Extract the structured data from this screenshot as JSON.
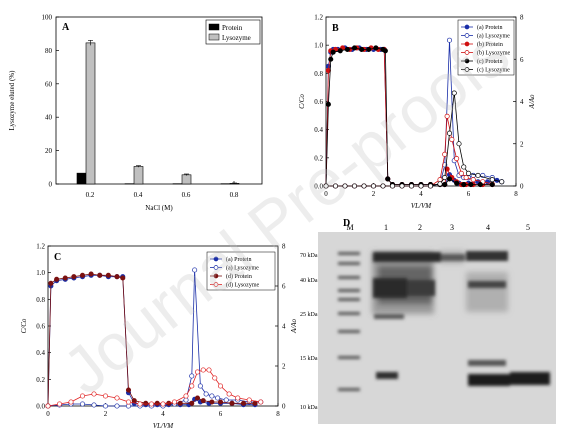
{
  "watermark": "Journal Pre-proofs",
  "chart_data": [
    {
      "panel": "A",
      "type": "bar",
      "ylabel": "Lysozyme eluted (%)",
      "xlabel": "NaCl (M)",
      "ylim": [
        0,
        100
      ],
      "yticks": [
        "0",
        "20",
        "40",
        "60",
        "80",
        "100"
      ],
      "categories": [
        "0.2",
        "0.4",
        "0.6",
        "0.8"
      ],
      "series": [
        {
          "name": "Protein",
          "values": [
            6.5,
            0.2,
            0.2,
            0.2
          ],
          "errors": [
            0,
            0,
            0,
            0
          ]
        },
        {
          "name": "Lysozyme",
          "values": [
            84.5,
            10.5,
            5.5,
            0.4
          ],
          "errors": [
            1.5,
            0.5,
            0.5,
            0.2
          ]
        }
      ],
      "colors": {
        "Protein": "#000000",
        "Lysozyme": "#c0c0c0"
      },
      "legend": "top-right"
    },
    {
      "panel": "B",
      "type": "line",
      "xlabel": "VL/VM",
      "ylabel": "C/Co",
      "ylabel_right": "A/Ao",
      "xlim": [
        0,
        8
      ],
      "ylim": [
        0,
        1.2
      ],
      "ylim_right": [
        0,
        8
      ],
      "xticks": [
        "0",
        "2",
        "4",
        "6",
        "8"
      ],
      "yticks": [
        "0.0",
        "0.2",
        "0.4",
        "0.6",
        "0.8",
        "1.0",
        "1.2"
      ],
      "yticks_right": [
        "0",
        "2",
        "4",
        "6",
        "8"
      ],
      "series": [
        {
          "name": "(a) Protein",
          "axis": "left",
          "color": "#1a2ea8",
          "fill": "#1a2ea8",
          "x": [
            0,
            0.1,
            0.2,
            0.3,
            0.5,
            0.8,
            1.1,
            1.4,
            1.7,
            2.0,
            2.3,
            2.45,
            2.6,
            2.8,
            3.2,
            3.6,
            4.0,
            4.4,
            4.8,
            5.0,
            5.2,
            5.4,
            5.6,
            5.8,
            6.0,
            6.4,
            6.8,
            7.2
          ],
          "y": [
            0.0,
            0.85,
            0.95,
            0.97,
            0.97,
            0.98,
            0.97,
            0.98,
            0.97,
            0.97,
            0.97,
            0.97,
            0.05,
            0.01,
            0.01,
            0.01,
            0.01,
            0.01,
            0.01,
            0.01,
            0.08,
            0.04,
            0.02,
            0.01,
            0.02,
            0.03,
            0.03,
            0.04
          ]
        },
        {
          "name": "(a) Lysozyme",
          "axis": "right",
          "color": "#1a2ea8",
          "fill": "#ffffff",
          "x": [
            0,
            0.4,
            0.8,
            1.2,
            1.6,
            2.0,
            2.4,
            2.8,
            3.2,
            3.6,
            4.0,
            4.4,
            4.8,
            5.0,
            5.2,
            5.4,
            5.6,
            5.8,
            6.0,
            6.2,
            6.6,
            7.0,
            7.4
          ],
          "y": [
            0,
            0,
            0,
            0,
            0,
            0,
            0,
            0,
            0,
            0,
            0,
            0,
            0.1,
            1.0,
            6.9,
            1.2,
            0.5,
            0.4,
            0.4,
            0.5,
            0.5,
            0.4,
            0.2
          ]
        },
        {
          "name": "(b) Protein",
          "axis": "left",
          "color": "#d01010",
          "fill": "#d01010",
          "x": [
            0,
            0.1,
            0.2,
            0.4,
            0.7,
            1.0,
            1.3,
            1.6,
            1.9,
            2.2,
            2.45,
            2.6,
            2.8,
            3.2,
            3.6,
            4.0,
            4.4,
            4.8,
            5.0,
            5.1,
            5.3,
            5.5,
            5.7,
            5.9,
            6.2,
            6.6,
            7.0
          ],
          "y": [
            0.0,
            0.82,
            0.96,
            0.97,
            0.98,
            0.97,
            0.98,
            0.97,
            0.98,
            0.97,
            0.97,
            0.05,
            0.01,
            0.01,
            0.01,
            0.01,
            0.01,
            0.01,
            0.01,
            0.12,
            0.06,
            0.03,
            0.01,
            0.01,
            0.01,
            0.01,
            0.01
          ]
        },
        {
          "name": "(b) Lysozyme",
          "axis": "right",
          "color": "#d01010",
          "fill": "#ffffff",
          "x": [
            0,
            0.4,
            0.8,
            1.2,
            1.6,
            2.0,
            2.4,
            2.8,
            3.2,
            3.6,
            4.0,
            4.4,
            4.8,
            5.0,
            5.1,
            5.3,
            5.5,
            5.7,
            5.9,
            6.2,
            6.6,
            7.0
          ],
          "y": [
            0,
            0,
            0,
            0,
            0,
            0,
            0,
            0,
            0,
            0,
            0,
            0,
            0.3,
            1.5,
            3.3,
            2.2,
            1.3,
            0.6,
            0.4,
            0.3,
            0.2,
            0.1
          ]
        },
        {
          "name": "(c) Protein",
          "axis": "left",
          "color": "#000000",
          "fill": "#000000",
          "x": [
            0,
            0.1,
            0.2,
            0.3,
            0.6,
            0.9,
            1.2,
            1.5,
            1.8,
            2.1,
            2.4,
            2.5,
            2.6,
            2.8,
            3.2,
            3.6,
            4.0,
            4.4,
            4.8,
            5.0,
            5.2,
            5.5,
            5.8,
            6.1,
            6.5,
            7.0
          ],
          "y": [
            0.0,
            0.58,
            0.9,
            0.95,
            0.96,
            0.97,
            0.98,
            0.97,
            0.97,
            0.98,
            0.97,
            0.96,
            0.05,
            0.01,
            0.01,
            0.01,
            0.01,
            0.01,
            0.01,
            0.01,
            0.05,
            0.02,
            0.01,
            0.01,
            0.01,
            0.01
          ]
        },
        {
          "name": "(c) Lysozyme",
          "axis": "right",
          "color": "#000000",
          "fill": "#ffffff",
          "x": [
            0,
            0.4,
            0.8,
            1.2,
            1.6,
            2.0,
            2.4,
            2.8,
            3.2,
            3.6,
            4.0,
            4.4,
            4.8,
            5.0,
            5.2,
            5.4,
            5.6,
            5.8,
            6.0,
            6.4,
            7.0,
            7.4
          ],
          "y": [
            0,
            0,
            0,
            0,
            0,
            0,
            0,
            0,
            0,
            0,
            0,
            0,
            0.1,
            0.4,
            2.5,
            4.4,
            2.0,
            0.9,
            0.6,
            0.5,
            0.3,
            0.2
          ]
        }
      ],
      "legend": "top-right"
    },
    {
      "panel": "C",
      "type": "line",
      "xlabel": "VL/VM",
      "ylabel": "C/Co",
      "ylabel_right": "A/Ao",
      "xlim": [
        0,
        8
      ],
      "ylim": [
        0,
        1.2
      ],
      "ylim_right": [
        0,
        8
      ],
      "xticks": [
        "0",
        "2",
        "4",
        "6",
        "8"
      ],
      "yticks": [
        "0.0",
        "0.2",
        "0.4",
        "0.6",
        "0.8",
        "1.0",
        "1.2"
      ],
      "yticks_right": [
        "0",
        "2",
        "4",
        "6",
        "8"
      ],
      "series": [
        {
          "name": "(a) Protein",
          "axis": "left",
          "color": "#1a2ea8",
          "fill": "#1a2ea8",
          "x": [
            0,
            0.1,
            0.3,
            0.6,
            0.9,
            1.2,
            1.5,
            1.8,
            2.1,
            2.4,
            2.6,
            2.8,
            3.0,
            3.4,
            3.8,
            4.2,
            4.6,
            4.9,
            5.1,
            5.3,
            5.6,
            6.0,
            6.4,
            6.8,
            7.2
          ],
          "y": [
            0.0,
            0.9,
            0.94,
            0.95,
            0.96,
            0.97,
            0.98,
            0.98,
            0.97,
            0.97,
            0.97,
            0.1,
            0.02,
            0.01,
            0.01,
            0.01,
            0.01,
            0.01,
            0.05,
            0.03,
            0.02,
            0.02,
            0.02,
            0.01,
            0.01
          ]
        },
        {
          "name": "(a) Lysozyme",
          "axis": "right",
          "color": "#1a2ea8",
          "fill": "#ffffff",
          "x": [
            0,
            0.4,
            0.8,
            1.2,
            1.6,
            2.0,
            2.4,
            2.8,
            3.2,
            3.6,
            4.0,
            4.4,
            4.8,
            5.0,
            5.1,
            5.3,
            5.5,
            5.7,
            5.9,
            6.2,
            6.6,
            7.0,
            7.4
          ],
          "y": [
            0,
            0.05,
            0.1,
            0.1,
            0.05,
            0,
            0,
            0,
            0,
            0,
            0,
            0.1,
            0.3,
            1.5,
            6.8,
            1.0,
            0.6,
            0.5,
            0.4,
            0.3,
            0.3,
            0.2,
            0.2
          ]
        },
        {
          "name": "(d) Protein",
          "axis": "left",
          "color": "#7a1010",
          "fill": "#7a1010",
          "x": [
            0,
            0.1,
            0.3,
            0.6,
            0.9,
            1.2,
            1.5,
            1.8,
            2.1,
            2.4,
            2.6,
            2.8,
            3.0,
            3.4,
            3.8,
            4.2,
            4.6,
            5.0,
            5.2,
            5.4,
            5.7,
            6.0,
            6.4,
            6.8,
            7.2
          ],
          "y": [
            0.0,
            0.92,
            0.95,
            0.96,
            0.97,
            0.98,
            0.99,
            0.98,
            0.98,
            0.97,
            0.96,
            0.12,
            0.04,
            0.02,
            0.02,
            0.02,
            0.02,
            0.02,
            0.06,
            0.04,
            0.03,
            0.03,
            0.02,
            0.02,
            0.02
          ]
        },
        {
          "name": "(d) Lysozyme",
          "axis": "right",
          "color": "#e02020",
          "fill": "#ffffff",
          "x": [
            0,
            0.4,
            0.8,
            1.2,
            1.6,
            2.0,
            2.4,
            2.8,
            3.2,
            3.6,
            4.0,
            4.4,
            4.8,
            5.0,
            5.2,
            5.4,
            5.6,
            5.8,
            6.0,
            6.3,
            6.6,
            7.0,
            7.4
          ],
          "y": [
            0,
            0.1,
            0.2,
            0.5,
            0.6,
            0.5,
            0.4,
            0.2,
            0.1,
            0.1,
            0.1,
            0.2,
            0.5,
            1.0,
            1.7,
            1.8,
            1.8,
            1.4,
            1.0,
            0.6,
            0.4,
            0.3,
            0.2
          ]
        }
      ],
      "legend": "top-right"
    }
  ],
  "gel": {
    "panel": "D",
    "lane_labels": [
      "M",
      "1",
      "2",
      "3",
      "4",
      "5"
    ],
    "markers": [
      "70 kDa",
      "40 kDa",
      "25 kDa",
      "15 kDa",
      "10 kDa"
    ]
  }
}
